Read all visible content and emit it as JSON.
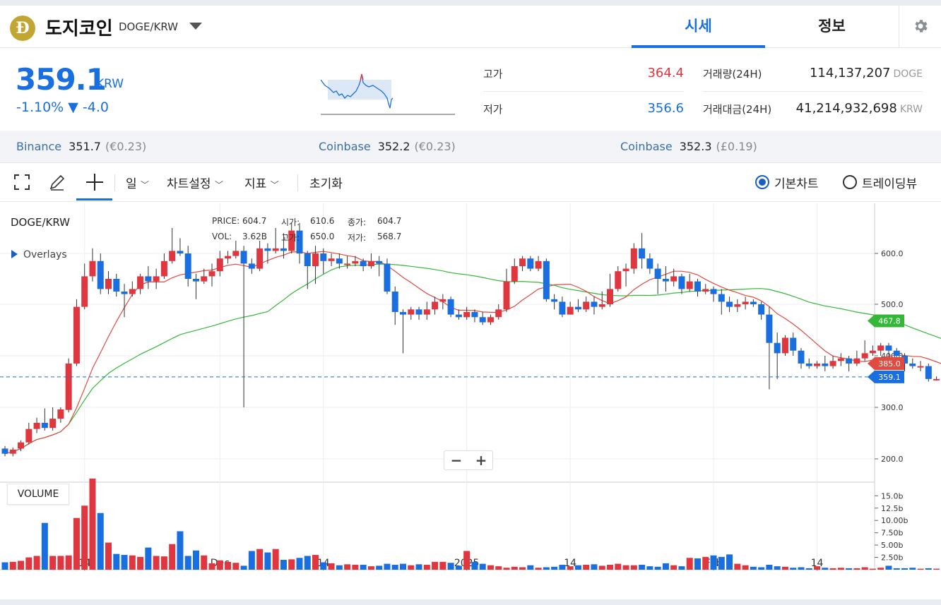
{
  "header": {
    "coin_symbol": "Ð",
    "coin_name": "도지코인",
    "pair": "DOGE/KRW",
    "tabs": [
      "시세",
      "정보"
    ],
    "settings_icon": "gear-icon"
  },
  "price": {
    "value": "359.1",
    "unit": "KRW",
    "change": "-1.10% ▼ -4.0"
  },
  "stats": {
    "high_label": "고가",
    "high_value": "364.4",
    "low_label": "저가",
    "low_value": "356.6",
    "volume_label": "거래량(24H)",
    "volume_value": "114,137,207",
    "volume_unit": "DOGE",
    "amount_label": "거래대금(24H)",
    "amount_value": "41,214,932,698",
    "amount_unit": "KRW"
  },
  "exchanges": [
    {
      "name": "Binance",
      "price": "351.7",
      "fiat": "(€0.23)"
    },
    {
      "name": "Coinbase",
      "price": "352.2",
      "fiat": "(€0.23)"
    },
    {
      "name": "Coinbase",
      "price": "352.3",
      "fiat": "(£0.19)"
    }
  ],
  "toolbar": {
    "interval": "일",
    "chart_settings": "차트설정",
    "indicators": "지표",
    "reset": "초기화",
    "basic_chart": "기본차트",
    "trading_view": "트레이딩뷰"
  },
  "chart_labels": {
    "title": "DOGE/KRW",
    "overlays": "Overlays",
    "price_lbl": "PRICE:",
    "price_val": "604.7",
    "open_lbl": "시가:",
    "open_val": "610.6",
    "close_lbl": "종가:",
    "close_val": "604.7",
    "vol_lbl": "VOL:",
    "vol_val": "3.62B",
    "high_lbl": "고가:",
    "high_val": "650.0",
    "low_lbl": "저가:",
    "low_val": "568.7",
    "volume_panel": "VOLUME",
    "zoom_out": "−",
    "zoom_in": "+"
  },
  "colors": {
    "up": "#e0363f",
    "down": "#1a6fe0",
    "ma_short": "#e04a40",
    "ma_long": "#35b83a",
    "accent": "#1a6fe0"
  },
  "chart_data": {
    "type": "candlestick",
    "title": "DOGE/KRW",
    "price_axis": [
      "600.0",
      "500.0",
      "400.0",
      "300.0",
      "200.0"
    ],
    "volume_axis": [
      "15.0b",
      "12.5b",
      "10.00b",
      "7.50b",
      "5.00b",
      "2.50b"
    ],
    "x_labels": [
      {
        "label": "14",
        "index": 10
      },
      {
        "label": "Dec",
        "index": 27
      },
      {
        "label": "14",
        "index": 40
      },
      {
        "label": "2025",
        "index": 58
      },
      {
        "label": "14",
        "index": 71
      },
      {
        "label": "Feb",
        "index": 89
      },
      {
        "label": "14",
        "index": 102
      }
    ],
    "badges": [
      {
        "label": "467.8",
        "value": 467.8,
        "color": "#35b83a"
      },
      {
        "label": "385.0",
        "value": 385.0,
        "color": "#e04a40"
      },
      {
        "label": "359.1",
        "value": 359.1,
        "color": "#1a6fe0"
      }
    ],
    "current_price": 359.1,
    "candles": [
      [
        220,
        210,
        225,
        205
      ],
      [
        210,
        218,
        222,
        205
      ],
      [
        220,
        232,
        236,
        215
      ],
      [
        232,
        258,
        270,
        228
      ],
      [
        258,
        270,
        280,
        250
      ],
      [
        270,
        260,
        298,
        255
      ],
      [
        260,
        278,
        300,
        255
      ],
      [
        278,
        296,
        300,
        270
      ],
      [
        295,
        385,
        395,
        290
      ],
      [
        385,
        495,
        510,
        380
      ],
      [
        495,
        555,
        580,
        490
      ],
      [
        555,
        585,
        610,
        545
      ],
      [
        585,
        530,
        600,
        520
      ],
      [
        530,
        550,
        565,
        520
      ],
      [
        550,
        525,
        560,
        515
      ],
      [
        525,
        520,
        540,
        475
      ],
      [
        520,
        530,
        545,
        515
      ],
      [
        530,
        555,
        560,
        520
      ],
      [
        555,
        545,
        575,
        530
      ],
      [
        545,
        555,
        570,
        530
      ],
      [
        555,
        585,
        600,
        550
      ],
      [
        585,
        605,
        650,
        580
      ],
      [
        605,
        600,
        630,
        595
      ],
      [
        600,
        550,
        615,
        535
      ],
      [
        550,
        545,
        560,
        510
      ],
      [
        545,
        555,
        570,
        540
      ],
      [
        555,
        565,
        580,
        535
      ],
      [
        565,
        590,
        605,
        555
      ],
      [
        590,
        595,
        605,
        580
      ],
      [
        595,
        605,
        625,
        590
      ],
      [
        605,
        580,
        615,
        300
      ],
      [
        580,
        570,
        590,
        560
      ],
      [
        570,
        610,
        625,
        565
      ],
      [
        610,
        605,
        620,
        580
      ],
      [
        605,
        610,
        650,
        600
      ],
      [
        610,
        605,
        640,
        590
      ],
      [
        605,
        645,
        660,
        600
      ],
      [
        645,
        600,
        660,
        580
      ],
      [
        600,
        575,
        605,
        530
      ],
      [
        575,
        600,
        615,
        540
      ],
      [
        600,
        585,
        610,
        560
      ],
      [
        585,
        590,
        600,
        575
      ],
      [
        590,
        580,
        600,
        570
      ],
      [
        580,
        580,
        595,
        570
      ],
      [
        580,
        585,
        595,
        575
      ],
      [
        585,
        575,
        590,
        565
      ],
      [
        575,
        585,
        600,
        570
      ],
      [
        585,
        580,
        595,
        555
      ],
      [
        580,
        525,
        590,
        520
      ],
      [
        525,
        485,
        535,
        460
      ],
      [
        485,
        480,
        490,
        405
      ],
      [
        480,
        490,
        495,
        470
      ],
      [
        490,
        480,
        495,
        470
      ],
      [
        480,
        490,
        505,
        470
      ],
      [
        490,
        505,
        515,
        480
      ],
      [
        505,
        510,
        520,
        490
      ],
      [
        510,
        480,
        515,
        475
      ],
      [
        480,
        475,
        490,
        470
      ],
      [
        475,
        485,
        495,
        470
      ],
      [
        485,
        475,
        490,
        465
      ],
      [
        475,
        465,
        485,
        460
      ],
      [
        465,
        475,
        480,
        460
      ],
      [
        475,
        490,
        500,
        470
      ],
      [
        490,
        545,
        570,
        485
      ],
      [
        545,
        575,
        590,
        540
      ],
      [
        575,
        590,
        595,
        565
      ],
      [
        590,
        570,
        595,
        565
      ],
      [
        570,
        585,
        595,
        565
      ],
      [
        585,
        510,
        590,
        505
      ],
      [
        510,
        505,
        520,
        490
      ],
      [
        505,
        480,
        515,
        475
      ],
      [
        480,
        495,
        505,
        480
      ],
      [
        495,
        490,
        510,
        485
      ],
      [
        490,
        505,
        515,
        485
      ],
      [
        505,
        495,
        515,
        480
      ],
      [
        495,
        500,
        525,
        490
      ],
      [
        500,
        530,
        560,
        495
      ],
      [
        530,
        565,
        575,
        525
      ],
      [
        565,
        570,
        580,
        535
      ],
      [
        570,
        610,
        620,
        560
      ],
      [
        610,
        590,
        640,
        570
      ],
      [
        590,
        570,
        600,
        560
      ],
      [
        570,
        550,
        580,
        520
      ],
      [
        550,
        545,
        575,
        525
      ],
      [
        545,
        555,
        570,
        535
      ],
      [
        555,
        530,
        560,
        520
      ],
      [
        530,
        545,
        560,
        525
      ],
      [
        545,
        525,
        550,
        515
      ],
      [
        525,
        530,
        540,
        520
      ],
      [
        530,
        520,
        535,
        505
      ],
      [
        520,
        505,
        530,
        480
      ],
      [
        505,
        495,
        515,
        485
      ],
      [
        495,
        500,
        510,
        485
      ],
      [
        500,
        505,
        515,
        490
      ],
      [
        505,
        500,
        510,
        495
      ],
      [
        500,
        480,
        505,
        470
      ],
      [
        480,
        425,
        495,
        335
      ],
      [
        425,
        405,
        445,
        355
      ],
      [
        405,
        435,
        440,
        400
      ],
      [
        435,
        410,
        445,
        400
      ],
      [
        410,
        385,
        415,
        375
      ],
      [
        385,
        380,
        395,
        375
      ],
      [
        380,
        385,
        390,
        375
      ],
      [
        385,
        380,
        400,
        370
      ],
      [
        380,
        390,
        400,
        375
      ],
      [
        390,
        395,
        405,
        380
      ],
      [
        395,
        385,
        400,
        370
      ],
      [
        385,
        395,
        410,
        380
      ],
      [
        395,
        405,
        430,
        390
      ],
      [
        405,
        410,
        420,
        400
      ],
      [
        410,
        420,
        425,
        400
      ],
      [
        420,
        410,
        425,
        395
      ],
      [
        410,
        400,
        415,
        390
      ],
      [
        400,
        385,
        405,
        370
      ],
      [
        385,
        380,
        395,
        375
      ],
      [
        380,
        380,
        390,
        370
      ],
      [
        380,
        355,
        385,
        350
      ],
      [
        355,
        355,
        360,
        352
      ],
      [
        357,
        359,
        362,
        356
      ]
    ],
    "volumes": [
      1.5,
      1.6,
      1.8,
      2.5,
      2.8,
      9.5,
      2.8,
      2.8,
      2.9,
      10.5,
      13.0,
      18.5,
      11.5,
      5.5,
      3.2,
      3.0,
      2.9,
      2.6,
      4.5,
      2.8,
      2.7,
      5.2,
      7.8,
      2.8,
      3.9,
      2.9,
      1.3,
      1.9,
      1.6,
      1.4,
      0.8,
      3.8,
      4.2,
      3.5,
      4.2,
      2.0,
      2.1,
      2.4,
      2.8,
      3.0,
      1.5,
      1.3,
      0.9,
      1.1,
      1.0,
      1.0,
      0.7,
      0.8,
      1.2,
      1.0,
      1.2,
      0.9,
      1.1,
      1.0,
      1.6,
      1.6,
      1.4,
      0.8,
      3.8,
      1.6,
      1.2,
      0.9,
      0.7,
      0.4,
      0.6,
      0.5,
      0.9,
      0.4,
      0.5,
      0.6,
      1.0,
      0.7,
      0.9,
      1.0,
      1.1,
      0.8,
      1.0,
      1.2,
      0.9,
      0.9,
      1.0,
      0.7,
      0.6,
      1.3,
      0.9,
      0.7,
      2.4,
      2.3,
      2.6,
      2.9,
      2.6,
      3.1,
      1.2,
      0.9,
      0.6,
      0.5,
      1.0,
      0.7,
      0.6,
      0.4,
      0.5,
      0.3,
      0.7,
      0.4,
      0.3,
      0.4,
      0.3,
      0.3,
      0.5,
      0.2,
      0.4,
      0.8,
      0.3,
      0.3,
      0.4,
      0.2,
      0.3,
      0.2,
      0.2,
      0.2
    ]
  }
}
